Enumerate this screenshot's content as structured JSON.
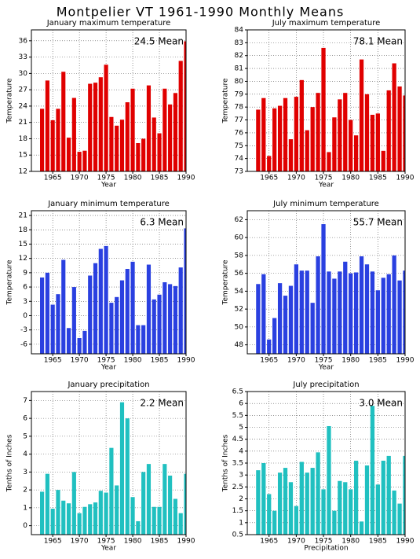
{
  "title": "Montpelier VT  1961-1990 Monthly Means",
  "chart_data": [
    {
      "type": "bar",
      "title": "January maximum temperature",
      "xlabel": "Year",
      "ylabel": "Temperature",
      "annotation": "24.5 Mean",
      "color": "#e00000",
      "x": [
        1963,
        1964,
        1965,
        1966,
        1967,
        1968,
        1969,
        1970,
        1971,
        1972,
        1973,
        1974,
        1975,
        1976,
        1977,
        1978,
        1979,
        1980,
        1981,
        1982,
        1983,
        1984,
        1985,
        1986,
        1987,
        1988,
        1989,
        1990
      ],
      "values": [
        23.5,
        28.7,
        21.4,
        23.5,
        30.3,
        18.2,
        25.5,
        15.6,
        15.8,
        28.1,
        28.3,
        29.3,
        31.6,
        22,
        20.4,
        21.5,
        24.7,
        27.2,
        17.2,
        18,
        27.8,
        21.9,
        19,
        27.2,
        24.3,
        26.4,
        32.3,
        35.9
      ],
      "xlim": [
        1961,
        1990
      ],
      "xticks": [
        1965,
        1970,
        1975,
        1980,
        1985,
        1990
      ],
      "ylim": [
        12,
        38
      ],
      "yticks": [
        12,
        15,
        18,
        21,
        24,
        27,
        30,
        33,
        36
      ],
      "grid": true
    },
    {
      "type": "bar",
      "title": "July maximum temperature",
      "xlabel": "Year",
      "ylabel": "Temperature",
      "annotation": "78.1 Mean",
      "color": "#e00000",
      "x": [
        1963,
        1964,
        1965,
        1966,
        1967,
        1968,
        1969,
        1970,
        1971,
        1972,
        1973,
        1974,
        1975,
        1976,
        1977,
        1978,
        1979,
        1980,
        1981,
        1982,
        1983,
        1984,
        1985,
        1986,
        1987,
        1988,
        1989,
        1990
      ],
      "values": [
        77.8,
        78.7,
        74.2,
        77.9,
        78.1,
        78.7,
        75.5,
        78.8,
        80.1,
        76.2,
        78.0,
        79.1,
        82.6,
        74.5,
        77.2,
        78.6,
        79.1,
        77.0,
        75.8,
        81.7,
        79.0,
        77.4,
        77.5,
        74.6,
        79.3,
        81.4,
        79.6,
        78.9
      ],
      "xlim": [
        1961,
        1990
      ],
      "xticks": [
        1965,
        1970,
        1975,
        1980,
        1985,
        1990
      ],
      "ylim": [
        73,
        84
      ],
      "yticks": [
        73,
        74,
        75,
        76,
        77,
        78,
        79,
        80,
        81,
        82,
        83,
        84
      ],
      "grid": true
    },
    {
      "type": "bar",
      "title": "January minimum temperature",
      "xlabel": "Year",
      "ylabel": "Temperature",
      "annotation": "6.3 Mean",
      "color": "#2a40e0",
      "x": [
        1963,
        1964,
        1965,
        1966,
        1967,
        1968,
        1969,
        1970,
        1971,
        1972,
        1973,
        1974,
        1975,
        1976,
        1977,
        1978,
        1979,
        1980,
        1981,
        1982,
        1983,
        1984,
        1985,
        1986,
        1987,
        1988,
        1989,
        1990
      ],
      "values": [
        8.0,
        9.0,
        2.3,
        4.5,
        11.7,
        -2.6,
        6.0,
        -4.7,
        -3.2,
        8.4,
        11.0,
        14.0,
        14.6,
        2.7,
        3.9,
        7.4,
        9.8,
        11.3,
        -2.0,
        -2.0,
        10.7,
        3.4,
        4.4,
        7.0,
        6.6,
        6.2,
        10.1,
        18.3
      ],
      "xlim": [
        1961,
        1990
      ],
      "xticks": [
        1965,
        1970,
        1975,
        1980,
        1985,
        1990
      ],
      "ylim": [
        -8,
        22
      ],
      "yticks": [
        -6,
        -3,
        0,
        3,
        6,
        9,
        12,
        15,
        18,
        21
      ],
      "grid": true
    },
    {
      "type": "bar",
      "title": "July minimum temperature",
      "xlabel": "Year",
      "ylabel": "Temperature",
      "annotation": "55.7 Mean",
      "color": "#2a40e0",
      "x": [
        1963,
        1964,
        1965,
        1966,
        1967,
        1968,
        1969,
        1970,
        1971,
        1972,
        1973,
        1974,
        1975,
        1976,
        1977,
        1978,
        1979,
        1980,
        1981,
        1982,
        1983,
        1984,
        1985,
        1986,
        1987,
        1988,
        1989,
        1990
      ],
      "values": [
        54.8,
        55.9,
        48.6,
        51.0,
        54.9,
        53.5,
        54.6,
        57.0,
        56.3,
        56.3,
        52.7,
        57.9,
        61.5,
        56.2,
        55.4,
        56.2,
        57.3,
        56.0,
        56.1,
        57.9,
        57.0,
        56.2,
        54.1,
        55.5,
        55.9,
        58.0,
        55.2,
        56.3
      ],
      "xlim": [
        1961,
        1990
      ],
      "xticks": [
        1965,
        1970,
        1975,
        1980,
        1985,
        1990
      ],
      "ylim": [
        47,
        63
      ],
      "yticks": [
        48,
        50,
        52,
        54,
        56,
        58,
        60,
        62
      ],
      "grid": true
    },
    {
      "type": "bar",
      "title": "January precipitation",
      "xlabel": "Year",
      "ylabel": "Tenths of Inches",
      "annotation": "2.2 Mean",
      "color": "#20c0c0",
      "x": [
        1963,
        1964,
        1965,
        1966,
        1967,
        1968,
        1969,
        1970,
        1971,
        1972,
        1973,
        1974,
        1975,
        1976,
        1977,
        1978,
        1979,
        1980,
        1981,
        1982,
        1983,
        1984,
        1985,
        1986,
        1987,
        1988,
        1989,
        1990
      ],
      "values": [
        1.9,
        2.9,
        0.95,
        2.0,
        1.4,
        1.25,
        3.0,
        0.7,
        1.05,
        1.2,
        1.3,
        1.95,
        1.85,
        4.35,
        2.25,
        6.9,
        6.0,
        1.6,
        0.25,
        3.0,
        3.45,
        1.05,
        1.05,
        3.45,
        2.8,
        1.5,
        0.7,
        2.9
      ],
      "xlim": [
        1961,
        1990
      ],
      "xticks": [
        1965,
        1970,
        1975,
        1980,
        1985,
        1990
      ],
      "ylim": [
        -0.5,
        7.5
      ],
      "yticks": [
        0,
        1,
        2,
        3,
        4,
        5,
        6,
        7
      ],
      "grid": true
    },
    {
      "type": "bar",
      "title": "July precipitation",
      "xlabel": "Precipitation",
      "ylabel": "Tenths of Inches",
      "annotation": "3.0 Mean",
      "color": "#20c0c0",
      "x": [
        1963,
        1964,
        1965,
        1966,
        1967,
        1968,
        1969,
        1970,
        1971,
        1972,
        1973,
        1974,
        1975,
        1976,
        1977,
        1978,
        1979,
        1980,
        1981,
        1982,
        1983,
        1984,
        1985,
        1986,
        1987,
        1988,
        1989,
        1990
      ],
      "values": [
        3.2,
        3.5,
        2.2,
        1.5,
        3.1,
        3.3,
        2.7,
        1.7,
        3.55,
        3.1,
        3.3,
        3.95,
        2.4,
        5.05,
        1.5,
        2.75,
        2.7,
        2.4,
        3.6,
        1.05,
        3.4,
        5.9,
        2.6,
        3.6,
        3.8,
        2.35,
        1.8,
        3.8
      ],
      "xlim": [
        1961,
        1990
      ],
      "xticks": [
        1965,
        1970,
        1975,
        1980,
        1985,
        1990
      ],
      "ylim": [
        0.5,
        6.5
      ],
      "yticks": [
        0.5,
        1,
        1.5,
        2,
        2.5,
        3,
        3.5,
        4,
        4.5,
        5,
        5.5,
        6,
        6.5
      ],
      "grid": true
    }
  ]
}
